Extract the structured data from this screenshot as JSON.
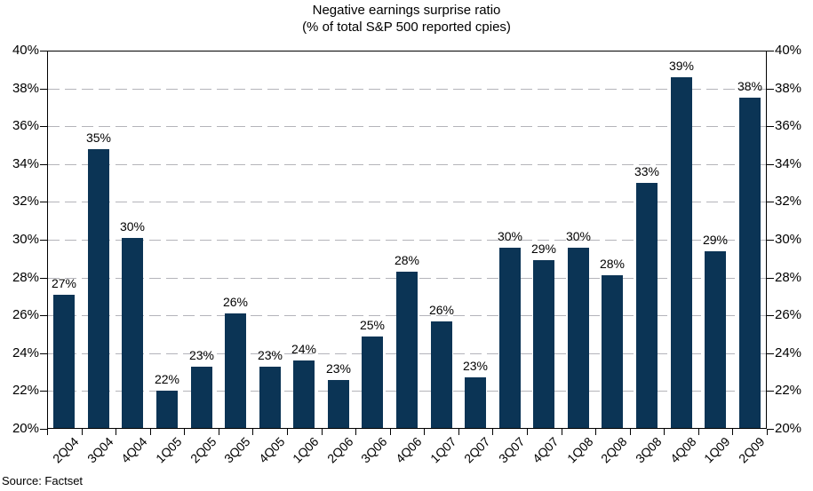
{
  "title": {
    "line1": "Negative earnings surprise ratio",
    "line2": "(% of total S&P 500 reported cpies)"
  },
  "source_note": "Source: Factset",
  "colors": {
    "bar": "#0b3455",
    "gridline": "#b4b4ba",
    "axis": "#000000",
    "background": "#ffffff",
    "text": "#000000"
  },
  "chart_data": {
    "type": "bar",
    "title": "Negative earnings surprise ratio",
    "subtitle": "(% of total S&P 500 reported cpies)",
    "categories": [
      "2Q04",
      "3Q04",
      "4Q04",
      "1Q05",
      "2Q05",
      "3Q05",
      "4Q05",
      "1Q06",
      "2Q06",
      "3Q06",
      "4Q06",
      "1Q07",
      "2Q07",
      "3Q07",
      "4Q07",
      "1Q08",
      "2Q08",
      "3Q08",
      "4Q08",
      "1Q09",
      "2Q09"
    ],
    "values": [
      27.1,
      34.8,
      30.1,
      22.0,
      23.3,
      26.1,
      23.3,
      23.6,
      22.6,
      24.9,
      28.3,
      25.7,
      22.7,
      29.6,
      28.9,
      29.6,
      28.1,
      33.0,
      38.6,
      29.4,
      37.5
    ],
    "bar_labels": [
      "27%",
      "35%",
      "30%",
      "22%",
      "23%",
      "26%",
      "23%",
      "24%",
      "23%",
      "25%",
      "28%",
      "26%",
      "23%",
      "30%",
      "29%",
      "30%",
      "28%",
      "33%",
      "39%",
      "29%",
      "38%"
    ],
    "xlabel": "",
    "ylabel": "",
    "ylim": [
      20,
      40
    ],
    "y_tick_step": 2,
    "y_ticks": [
      "20%",
      "22%",
      "24%",
      "26%",
      "28%",
      "30%",
      "32%",
      "34%",
      "36%",
      "38%",
      "40%"
    ],
    "grid": "horizontal-dashed",
    "legend": "none",
    "axes_note": "percent axis mirrored on left and right sides; category labels rotated 45 degrees"
  }
}
